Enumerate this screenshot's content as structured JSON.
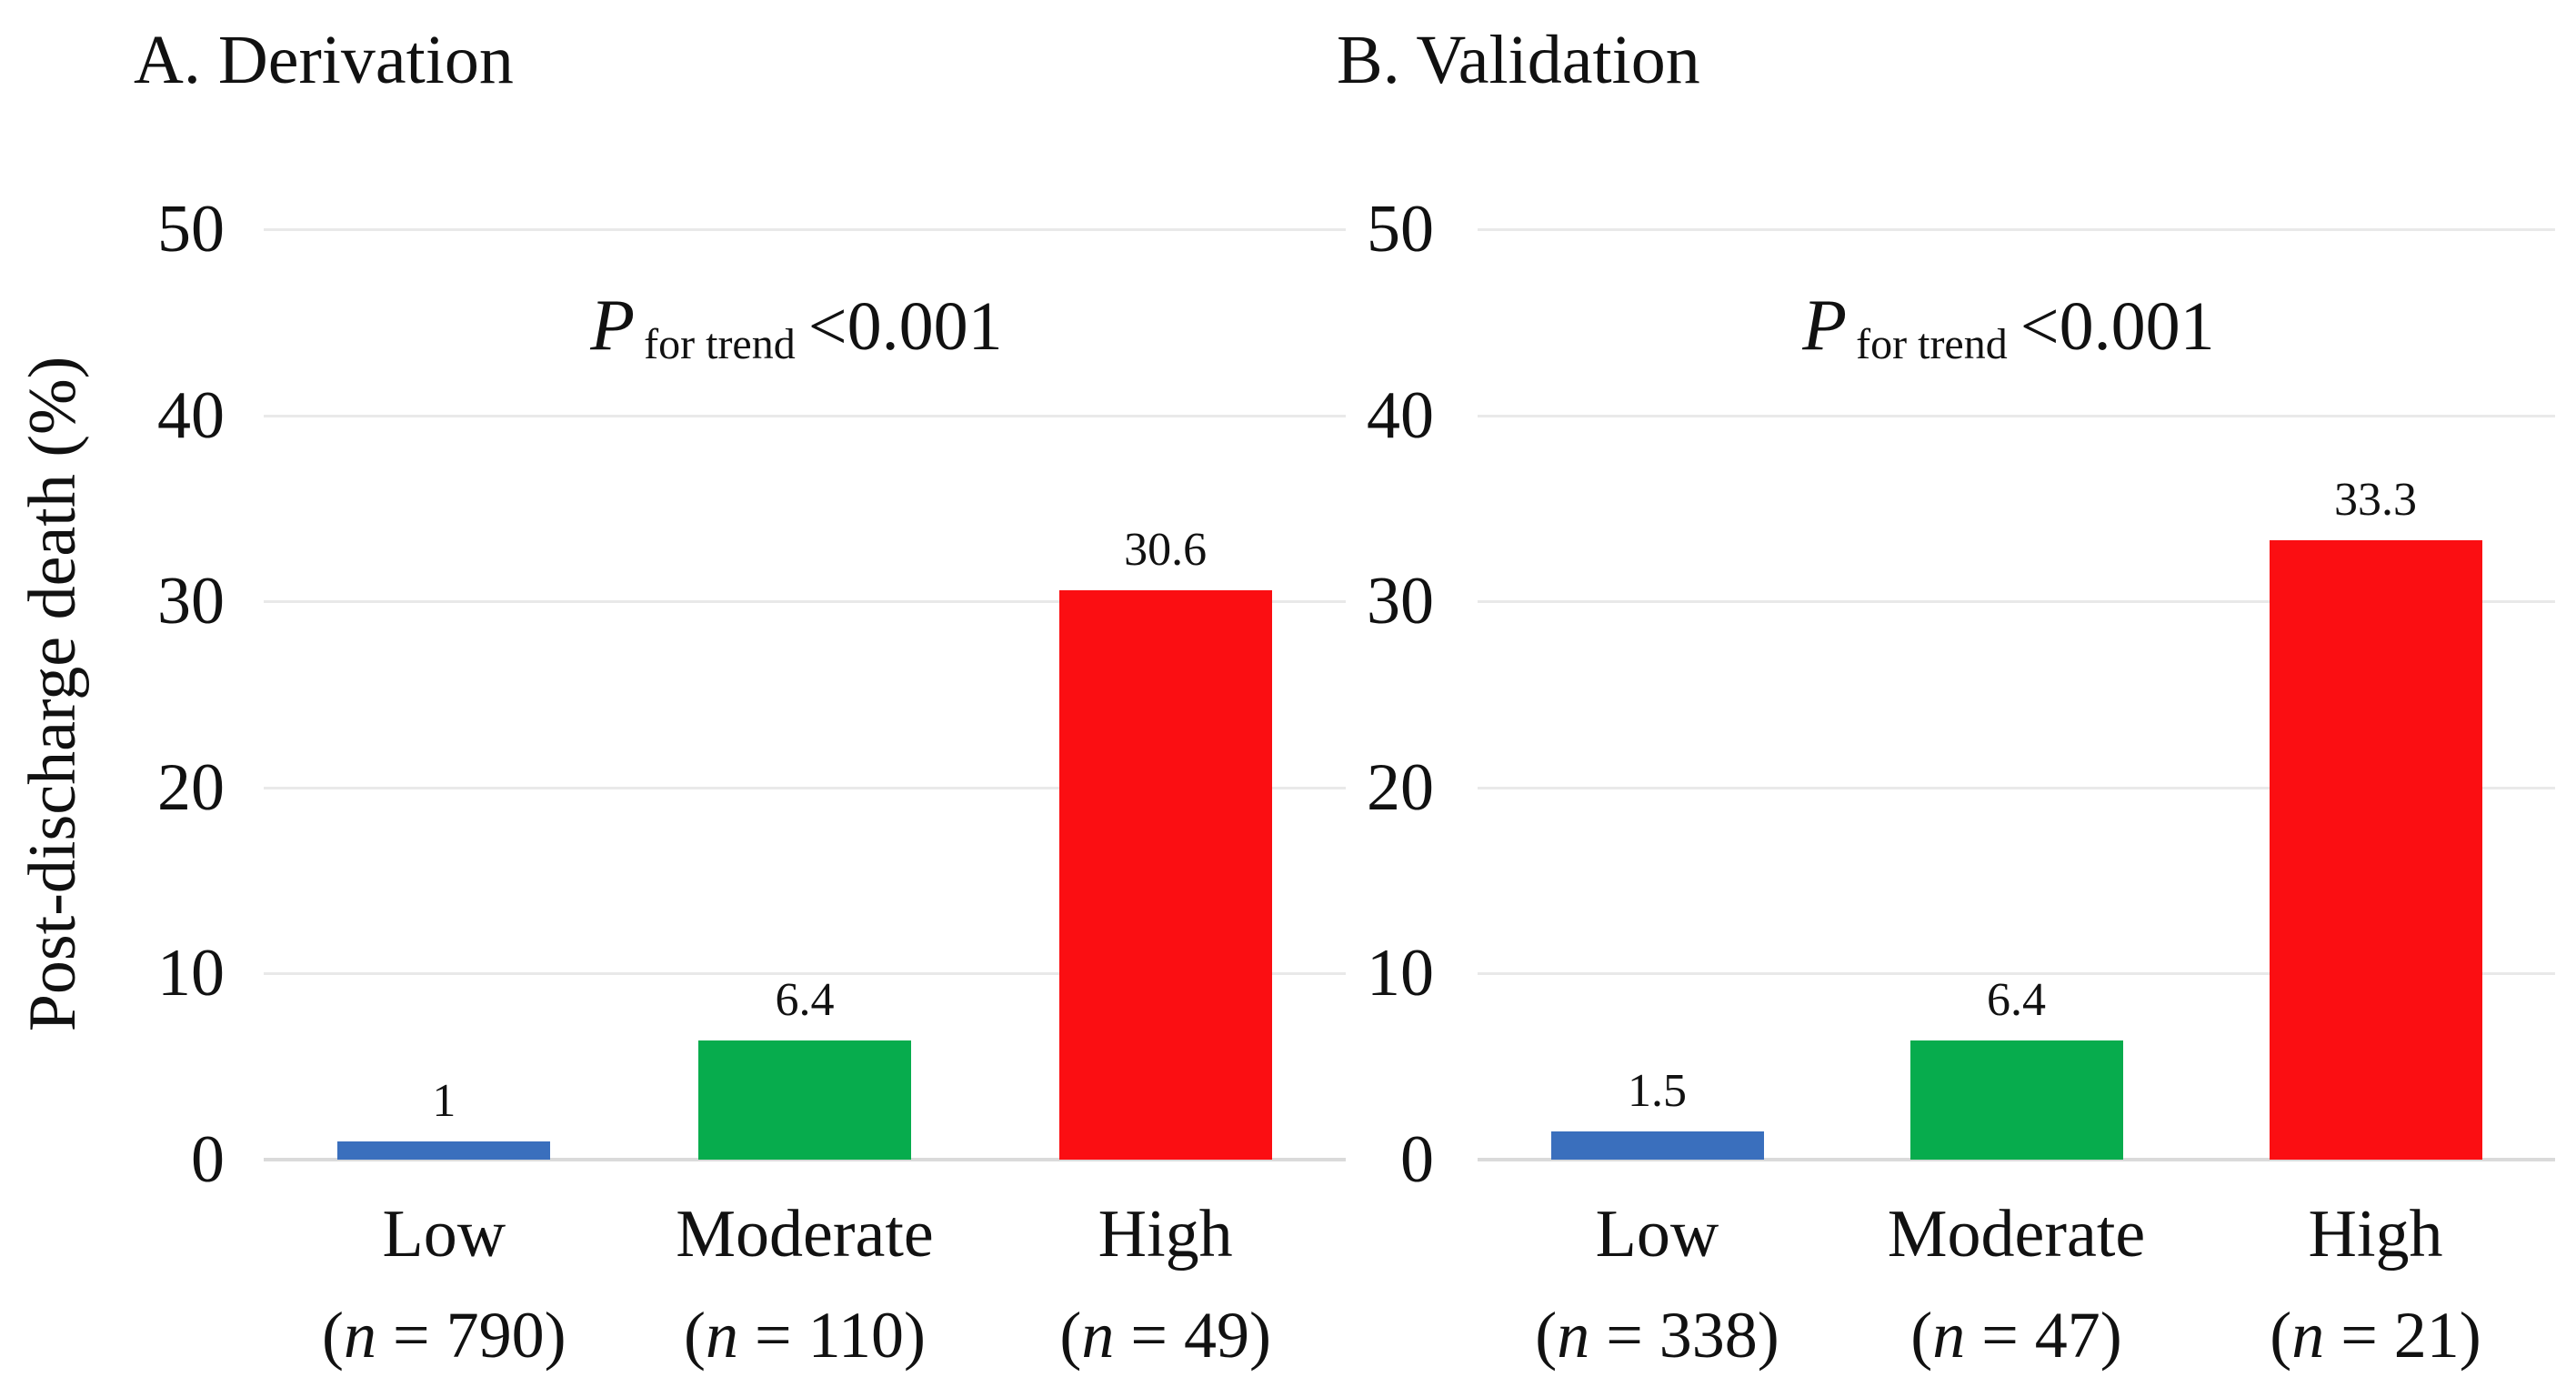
{
  "chart_data": [
    {
      "type": "bar",
      "title": "A. Derivation",
      "ylabel": "Post-discharge death (%)",
      "xlabel": "",
      "ylim": [
        0,
        50
      ],
      "yticks": [
        0,
        10,
        20,
        30,
        40,
        50
      ],
      "grid": true,
      "legend": false,
      "categories": [
        "Low",
        "Moderate",
        "High"
      ],
      "category_sublabels": [
        "(n = 790)",
        "(n = 110)",
        "(n = 49)"
      ],
      "values": [
        1,
        6.4,
        30.6
      ],
      "value_labels": [
        "1",
        "6.4",
        "30.6"
      ],
      "bar_colors": [
        "#3a6fbd",
        "#07ac4d",
        "#fb0e12"
      ],
      "annotation": {
        "p": "P",
        "sub": "for trend",
        "value": "<0.001"
      }
    },
    {
      "type": "bar",
      "title": "B. Validation",
      "ylabel": "",
      "xlabel": "",
      "ylim": [
        0,
        50
      ],
      "yticks": [
        0,
        10,
        20,
        30,
        40,
        50
      ],
      "grid": true,
      "legend": false,
      "categories": [
        "Low",
        "Moderate",
        "High"
      ],
      "category_sublabels": [
        "(n = 338)",
        "(n = 47)",
        "(n = 21)"
      ],
      "values": [
        1.5,
        6.4,
        33.3
      ],
      "value_labels": [
        "1.5",
        "6.4",
        "33.3"
      ],
      "bar_colors": [
        "#3a6fbd",
        "#07ac4d",
        "#fb0e12"
      ],
      "annotation": {
        "p": "P",
        "sub": "for trend",
        "value": "<0.001"
      }
    }
  ]
}
